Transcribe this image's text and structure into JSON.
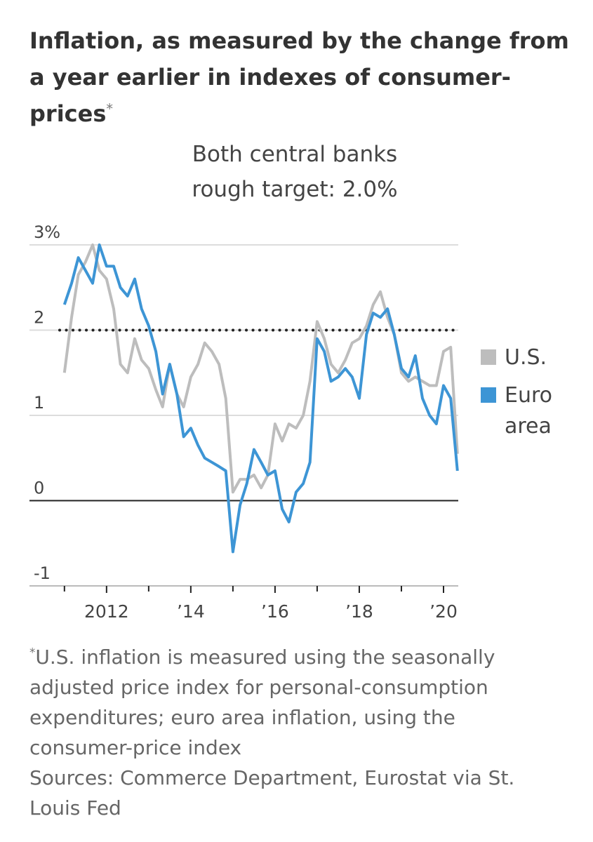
{
  "chart_data": {
    "type": "line",
    "title": "Inflation, as measured by the change from a year earlier in indexes of consumer-prices",
    "title_marker": "*",
    "annotation": [
      "Both central banks",
      "rough target: 2.0%"
    ],
    "target_line": 2,
    "x": [
      2011,
      2011.17,
      2011.33,
      2011.5,
      2011.67,
      2011.83,
      2012,
      2012.17,
      2012.33,
      2012.5,
      2012.67,
      2012.83,
      2013,
      2013.17,
      2013.33,
      2013.5,
      2013.67,
      2013.83,
      2014,
      2014.17,
      2014.33,
      2014.5,
      2014.67,
      2014.83,
      2015,
      2015.17,
      2015.33,
      2015.5,
      2015.67,
      2015.83,
      2016,
      2016.17,
      2016.33,
      2016.5,
      2016.67,
      2016.83,
      2017,
      2017.17,
      2017.33,
      2017.5,
      2017.67,
      2017.83,
      2018,
      2018.17,
      2018.33,
      2018.5,
      2018.67,
      2018.83,
      2019,
      2019.17,
      2019.33,
      2019.5,
      2019.67,
      2019.83,
      2020,
      2020.17,
      2020.33
    ],
    "series": [
      {
        "name": "U.S.",
        "color": "#bdbdbd",
        "values": [
          1.5,
          2.15,
          2.65,
          2.8,
          3.0,
          2.7,
          2.6,
          2.25,
          1.6,
          1.5,
          1.9,
          1.65,
          1.55,
          1.3,
          1.1,
          1.6,
          1.25,
          1.1,
          1.45,
          1.6,
          1.85,
          1.75,
          1.6,
          1.2,
          0.1,
          0.25,
          0.25,
          0.3,
          0.15,
          0.3,
          0.9,
          0.7,
          0.9,
          0.85,
          1.0,
          1.4,
          2.1,
          1.9,
          1.6,
          1.5,
          1.65,
          1.85,
          1.9,
          2.05,
          2.3,
          2.45,
          2.15,
          1.95,
          1.5,
          1.4,
          1.45,
          1.4,
          1.35,
          1.35,
          1.75,
          1.8,
          0.55
        ]
      },
      {
        "name": "Euro area",
        "color": "#3d95d5",
        "values": [
          2.3,
          2.55,
          2.85,
          2.7,
          2.55,
          3.0,
          2.75,
          2.75,
          2.5,
          2.4,
          2.6,
          2.25,
          2.05,
          1.75,
          1.25,
          1.6,
          1.25,
          0.75,
          0.85,
          0.65,
          0.5,
          0.45,
          0.4,
          0.35,
          -0.6,
          -0.05,
          0.2,
          0.6,
          0.45,
          0.3,
          0.35,
          -0.1,
          -0.25,
          0.1,
          0.2,
          0.45,
          1.9,
          1.75,
          1.4,
          1.45,
          1.55,
          1.45,
          1.2,
          1.95,
          2.2,
          2.15,
          2.25,
          1.95,
          1.55,
          1.45,
          1.7,
          1.2,
          1.0,
          0.9,
          1.35,
          1.2,
          0.35
        ]
      }
    ],
    "xlim": [
      2010.17,
      2020.35
    ],
    "xticks": [
      2012,
      {
        "value": 2014,
        "label": "’14"
      },
      {
        "value": 2016,
        "label": "’16"
      },
      {
        "value": 2018,
        "label": "’18"
      },
      {
        "value": 2020,
        "label": "’20"
      }
    ],
    "xminor_ticks": [
      2011,
      2013,
      2015,
      2017,
      2019
    ],
    "ylim": [
      -1,
      3
    ],
    "yticks": [
      {
        "value": 3,
        "label": "3%"
      },
      2,
      1,
      0,
      -1
    ],
    "grid": true,
    "note_marker": "*",
    "note": "U.S. inflation is measured using the seasonally adjusted price index for personal-consumption expenditures; euro area inflation, using the consumer-price index",
    "sources": "Sources: Commerce Department, Eurostat via St. Louis Fed"
  }
}
